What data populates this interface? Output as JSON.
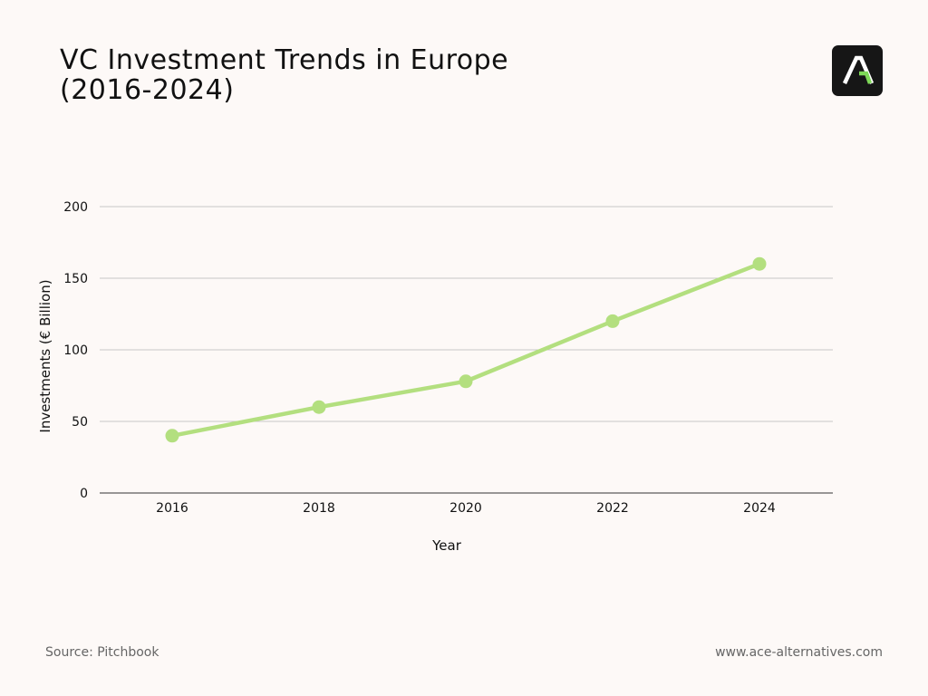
{
  "title_lines": [
    "VC Investment Trends in Europe",
    "(2016-2024)"
  ],
  "source": "Source: Pitchbook",
  "website": "www.ace-alternatives.com",
  "logo": {
    "icon": "ace-logo-icon",
    "bg_color": "#161616",
    "accent_color": "#7ed957"
  },
  "colors": {
    "line": "#b3df7f",
    "grid": "#c7c7c7",
    "axis": "#333333",
    "background": "#fdf9f7"
  },
  "chart_data": {
    "type": "line",
    "title": "VC Investment Trends in Europe (2016-2024)",
    "xlabel": "Year",
    "ylabel": "Investments (€ Billion)",
    "categories": [
      "2016",
      "2018",
      "2020",
      "2022",
      "2024"
    ],
    "series": [
      {
        "values": [
          40,
          60,
          78,
          120,
          160
        ]
      }
    ],
    "ylim": [
      0,
      200
    ],
    "yticks": [
      0,
      50,
      100,
      150,
      200
    ],
    "grid": "horizontal",
    "legend": "none"
  }
}
